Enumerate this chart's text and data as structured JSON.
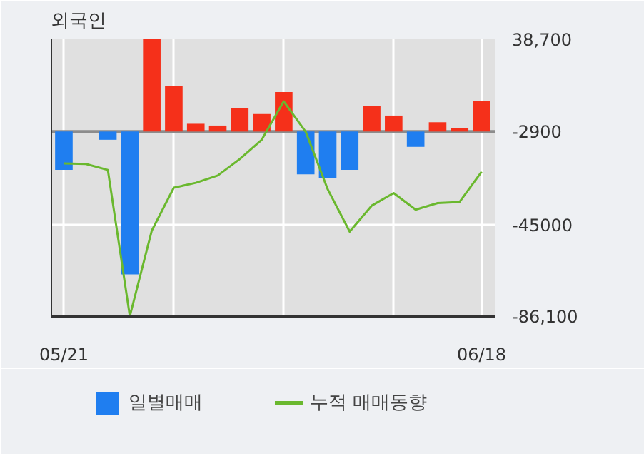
{
  "chart_data": {
    "type": "bar",
    "title": "외국인",
    "categories": [
      "05/21",
      null,
      null,
      null,
      null,
      null,
      null,
      null,
      null,
      null,
      null,
      null,
      null,
      null,
      null,
      null,
      null,
      null,
      null,
      "06/18"
    ],
    "ylim": [
      -86100,
      38700
    ],
    "yticks": [
      {
        "value": 38700,
        "label": "38,700"
      },
      {
        "value": -2900,
        "label": "-2900"
      },
      {
        "value": -45000,
        "label": "-45000"
      },
      {
        "value": -86100,
        "label": "-86,100"
      }
    ],
    "grid": true,
    "legend": "bottom",
    "ref_lines": [
      {
        "axis": "y",
        "value": -2900,
        "label": null,
        "color": "#8c8c8c"
      }
    ],
    "series": [
      {
        "name": "일별매매",
        "base": [
          -2900,
          null,
          -2900,
          -2900,
          -2900,
          -2900,
          -2900,
          -2900,
          -2900,
          -2900,
          -2900,
          -2900,
          -2900,
          -2900,
          -2900,
          -2900,
          -2900,
          -2900,
          -2900,
          -2900
        ],
        "values": [
          -17300,
          null,
          -3700,
          -64400,
          41600,
          20500,
          3500,
          2700,
          10400,
          7900,
          17800,
          -19300,
          -21000,
          -17300,
          11600,
          7200,
          -6900,
          4200,
          1500,
          13900
        ],
        "colors": [
          "#1f7ef0",
          "#1f7ef0",
          "#1f7ef0",
          "#1f7ef0",
          "#f5301a",
          "#f5301a",
          "#f5301a",
          "#f5301a",
          "#f5301a",
          "#f5301a",
          "#f5301a",
          "#1f7ef0",
          "#1f7ef0",
          "#1f7ef0",
          "#f5301a",
          "#f5301a",
          "#1f7ef0",
          "#f5301a",
          "#f5301a",
          "#f5301a"
        ]
      },
      {
        "name": "누적 매매동향",
        "type": "line",
        "color": "#6ab82e",
        "values": [
          -17300,
          -17500,
          -20200,
          -86100,
          -47500,
          -28200,
          -26000,
          -22700,
          -15300,
          -6600,
          10700,
          -3000,
          -28900,
          -48000,
          -36300,
          -30600,
          -38100,
          -35100,
          -34600,
          -21000
        ]
      }
    ]
  }
}
